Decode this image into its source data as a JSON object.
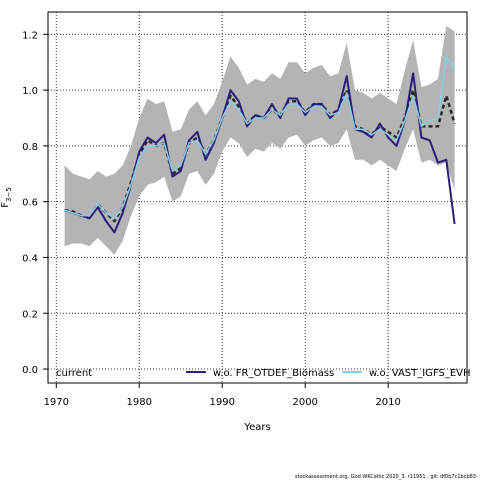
{
  "chart_data": {
    "type": "line",
    "xlabel": "Years",
    "ylabel": "F",
    "ylabel_sub": "3−5",
    "xlim": [
      1969,
      2019.5
    ],
    "ylim": [
      -0.05,
      1.28
    ],
    "x_ticks": [
      1970,
      1980,
      1990,
      2000,
      2010
    ],
    "y_ticks": [
      "0.0",
      "0.2",
      "0.4",
      "0.6",
      "0.8",
      "1.0",
      "1.2"
    ],
    "grid": true,
    "legend_placement": "bottom",
    "years": [
      1971,
      1972,
      1973,
      1974,
      1975,
      1976,
      1977,
      1978,
      1979,
      1980,
      1981,
      1982,
      1983,
      1984,
      1985,
      1986,
      1987,
      1988,
      1989,
      1990,
      1991,
      1992,
      1993,
      1994,
      1995,
      1996,
      1997,
      1998,
      1999,
      2000,
      2001,
      2002,
      2003,
      2004,
      2005,
      2006,
      2007,
      2008,
      2009,
      2010,
      2011,
      2012,
      2013,
      2014,
      2015,
      2016,
      2017,
      2018
    ],
    "band": {
      "upper": [
        0.73,
        0.7,
        0.69,
        0.68,
        0.71,
        0.69,
        0.7,
        0.73,
        0.8,
        0.9,
        0.97,
        0.95,
        0.96,
        0.85,
        0.86,
        0.93,
        0.96,
        0.91,
        0.95,
        1.03,
        1.12,
        1.08,
        1.02,
        1.04,
        1.03,
        1.06,
        1.04,
        1.1,
        1.1,
        1.06,
        1.08,
        1.09,
        1.05,
        1.06,
        1.17,
        1.0,
        0.99,
        0.97,
        0.99,
        0.97,
        0.95,
        1.07,
        1.18,
        1.01,
        1.02,
        1.04,
        1.23,
        1.21
      ],
      "lower": [
        0.44,
        0.45,
        0.45,
        0.44,
        0.47,
        0.44,
        0.41,
        0.46,
        0.55,
        0.62,
        0.66,
        0.67,
        0.69,
        0.6,
        0.62,
        0.7,
        0.71,
        0.66,
        0.7,
        0.78,
        0.83,
        0.81,
        0.76,
        0.79,
        0.78,
        0.81,
        0.79,
        0.83,
        0.84,
        0.8,
        0.82,
        0.83,
        0.8,
        0.81,
        0.86,
        0.75,
        0.75,
        0.73,
        0.75,
        0.73,
        0.71,
        0.79,
        0.86,
        0.74,
        0.75,
        0.73,
        0.74,
        0.64
      ]
    },
    "series": [
      {
        "name": "current",
        "color": "#2a2a2a",
        "style": "dashed",
        "values": [
          0.57,
          0.565,
          0.55,
          0.545,
          0.59,
          0.56,
          0.53,
          0.58,
          0.67,
          0.77,
          0.82,
          0.8,
          0.81,
          0.7,
          0.72,
          0.81,
          0.83,
          0.77,
          0.82,
          0.9,
          0.98,
          0.94,
          0.88,
          0.91,
          0.9,
          0.93,
          0.91,
          0.96,
          0.96,
          0.92,
          0.95,
          0.95,
          0.91,
          0.93,
          1.0,
          0.87,
          0.86,
          0.84,
          0.87,
          0.85,
          0.83,
          0.9,
          1.0,
          0.87,
          0.87,
          0.87,
          0.98,
          0.88
        ]
      },
      {
        "name": "w.o. FR_OTDEF_Biomass",
        "color": "#2b1d7a",
        "style": "solid",
        "values": [
          0.57,
          0.56,
          0.55,
          0.54,
          0.58,
          0.53,
          0.49,
          0.56,
          0.66,
          0.78,
          0.83,
          0.81,
          0.84,
          0.69,
          0.71,
          0.82,
          0.85,
          0.75,
          0.81,
          0.9,
          1.0,
          0.96,
          0.87,
          0.91,
          0.9,
          0.95,
          0.9,
          0.97,
          0.97,
          0.91,
          0.95,
          0.95,
          0.9,
          0.93,
          1.05,
          0.86,
          0.85,
          0.83,
          0.88,
          0.83,
          0.8,
          0.89,
          1.06,
          0.83,
          0.82,
          0.74,
          0.75,
          0.52
        ]
      },
      {
        "name": "w.o. VAST_IGFS_EVHOE",
        "color": "#87ceeb",
        "style": "solid",
        "values": [
          0.57,
          0.56,
          0.55,
          0.55,
          0.59,
          0.56,
          0.54,
          0.58,
          0.66,
          0.76,
          0.8,
          0.8,
          0.81,
          0.71,
          0.73,
          0.81,
          0.82,
          0.77,
          0.82,
          0.9,
          0.96,
          0.93,
          0.88,
          0.9,
          0.9,
          0.93,
          0.91,
          0.95,
          0.95,
          0.92,
          0.94,
          0.94,
          0.91,
          0.92,
          0.99,
          0.86,
          0.86,
          0.84,
          0.86,
          0.84,
          0.82,
          0.89,
          0.98,
          0.87,
          0.89,
          0.9,
          1.12,
          1.08
        ]
      }
    ]
  },
  "legend": {
    "current": "current",
    "wo_fr": "w.o. FR_OTDEF_Biomass",
    "wo_vast": "w.o. VAST_IGFS_EVH"
  },
  "footer": "stockassessment.org, God WKCeltic  2020_3, r11951 , git: df0b7c1bcb83"
}
